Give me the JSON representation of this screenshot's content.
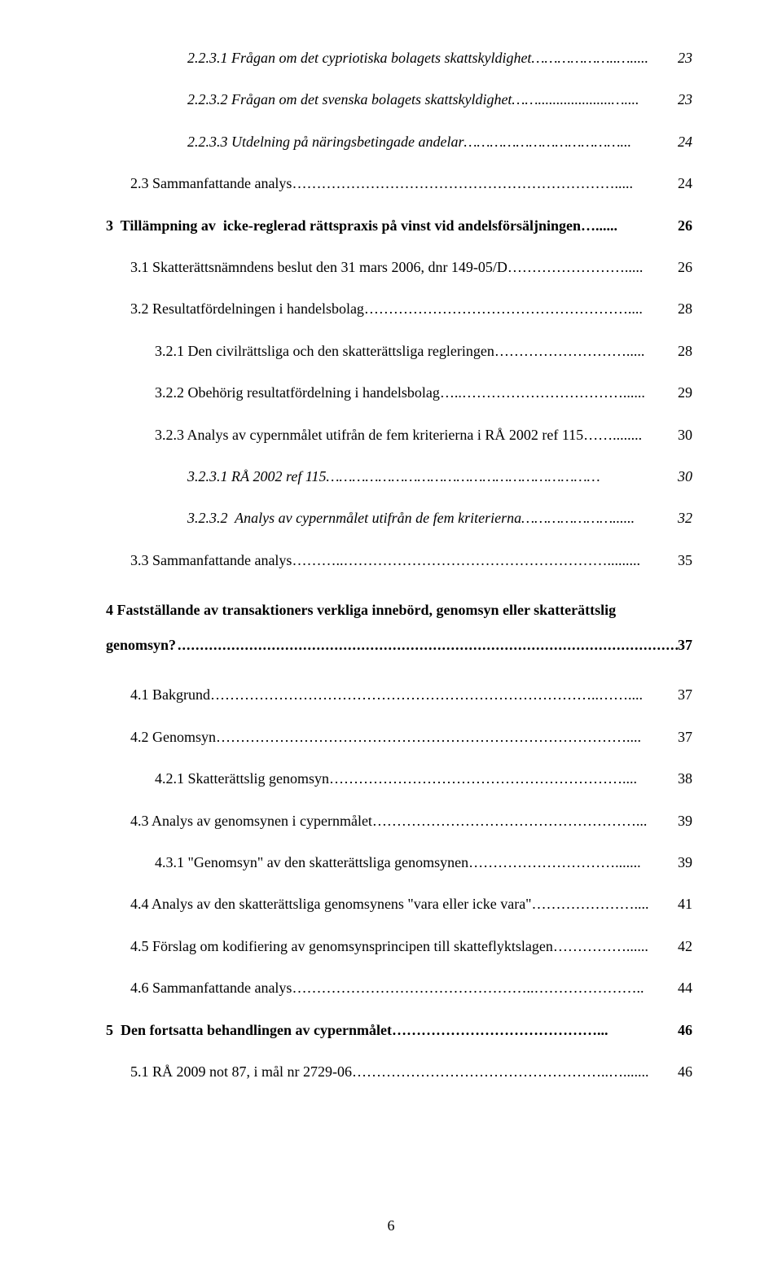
{
  "entries": [
    {
      "label": "2.2.3.1 Frågan om det cypriotiska bolagets skattskyldighet………………..….....",
      "page": "23",
      "italic": true,
      "indent": 3
    },
    {
      "label": "2.2.3.2 Frågan om det svenska bolagets skattskyldighet……....................…....",
      "page": "23",
      "italic": true,
      "indent": 3
    },
    {
      "label": "2.2.3.3 Utdelning på näringsbetingade andelar………………………………...",
      "page": "24",
      "italic": true,
      "indent": 3
    },
    {
      "label": "2.3 Sammanfattande analys………………………………………………………….....",
      "page": "24",
      "indent": 1
    },
    {
      "label": "3  Tillämpning av  icke-reglerad rättspraxis på vinst vid andelsförsäljningen…......",
      "page": "26",
      "bold": true,
      "indent": 0
    },
    {
      "label": "3.1 Skatterättsnämndens beslut den 31 mars 2006, dnr 149-05/D…………………….....",
      "page": "26",
      "indent": 1
    },
    {
      "label": "3.2 Resultatfördelningen i handelsbolag………………………………………………....",
      "page": "28",
      "indent": 1
    },
    {
      "label": "3.2.1 Den civilrättsliga och den skatterättsliga regleringen……………………….....",
      "page": "28",
      "indent": 2
    },
    {
      "label": "3.2.2 Obehörig resultatfördelning i handelsbolag…..……………………………......",
      "page": "29",
      "indent": 2
    },
    {
      "label": "3.2.3 Analys av cypernmålet utifrån de fem kriterierna i RÅ 2002 ref 115……........",
      "page": "30",
      "indent": 2
    },
    {
      "label": "3.2.3.1 RÅ 2002 ref 115………………………………………………………",
      "page": "30",
      "italic": true,
      "indent": 3
    },
    {
      "label": "3.2.3.2  Analys av cypernmålet utifrån de fem kriterierna…………………......",
      "page": "32",
      "italic": true,
      "indent": 3
    },
    {
      "label": "3.3 Sammanfattande analys………..……………………………………………….........",
      "page": "35",
      "indent": 1
    }
  ],
  "section4": {
    "line1": "4  Fastställande av transaktioners verkliga innebörd, genomsyn eller skatterättslig",
    "line2_label": "genomsyn?",
    "line2_page": "37"
  },
  "entries2": [
    {
      "label": "4.1 Bakgrund……………………………………………………………………..……....",
      "page": "37",
      "indent": 1
    },
    {
      "label": "4.2 Genomsyn…………………………………………………………………………....",
      "page": "37",
      "indent": 1
    },
    {
      "label": "4.2.1 Skatterättslig genomsyn……………………………………………………....",
      "page": "38",
      "indent": 2
    },
    {
      "label": "4.3 Analys av genomsynen i cypernmålet………………………………………………...",
      "page": "39",
      "indent": 1
    },
    {
      "label": "4.3.1 \"Genomsyn\" av den skatterättsliga genomsynen………………………….......",
      "page": "39",
      "indent": 2
    },
    {
      "label": "4.4 Analys av den skatterättsliga genomsynens \"vara eller icke vara\"…………………....",
      "page": "41",
      "indent": 1
    },
    {
      "label": "4.5 Förslag om kodifiering av genomsynsprincipen till skatteflyktslagen……………......",
      "page": "42",
      "indent": 1
    },
    {
      "label": "4.6 Sammanfattande analys…………………………………………..…………………..",
      "page": "44",
      "indent": 1
    },
    {
      "label": "5  Den fortsatta behandlingen av cypernmålet……………………………………...",
      "page": "46",
      "bold": true,
      "indent": 0
    },
    {
      "label": "5.1 RÅ 2009 not 87, i mål nr 2729-06……………………………………………..….......",
      "page": "46",
      "indent": 1
    }
  ],
  "pageNumber": "6"
}
